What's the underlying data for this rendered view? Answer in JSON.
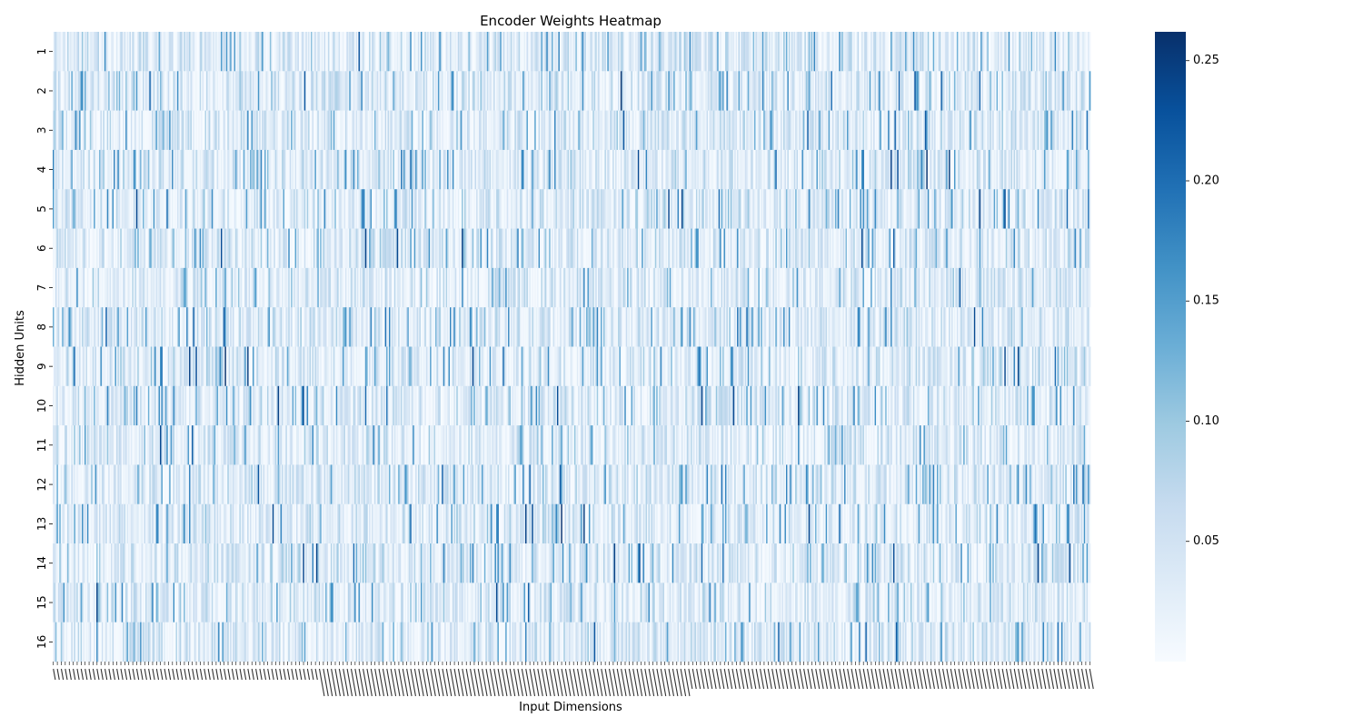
{
  "chart_data": {
    "type": "heatmap",
    "title": "Encoder Weights Heatmap",
    "xlabel": "Input Dimensions",
    "ylabel": "Hidden Units",
    "row_labels": [
      "1",
      "2",
      "3",
      "4",
      "5",
      "6",
      "7",
      "8",
      "9",
      "10",
      "11",
      "12",
      "13",
      "14",
      "15",
      "16"
    ],
    "n_columns": 784,
    "x_tick_labels_legible": false,
    "value_range": [
      0.0,
      0.262
    ],
    "colormap": "Blues",
    "colormap_stops": [
      "#f7fbff",
      "#deebf7",
      "#c6dbef",
      "#9ecae1",
      "#6baed6",
      "#4292c6",
      "#2171b5",
      "#08519c",
      "#08306b"
    ],
    "colorbar": {
      "ticks": [
        0.05,
        0.1,
        0.15,
        0.2,
        0.25
      ],
      "tick_labels": [
        "0.05",
        "0.10",
        "0.15",
        "0.20",
        "0.25"
      ]
    },
    "grid": false,
    "legend": "colorbar-right",
    "values_note": "individual cell values are not legible at this resolution; cells are approximated"
  }
}
